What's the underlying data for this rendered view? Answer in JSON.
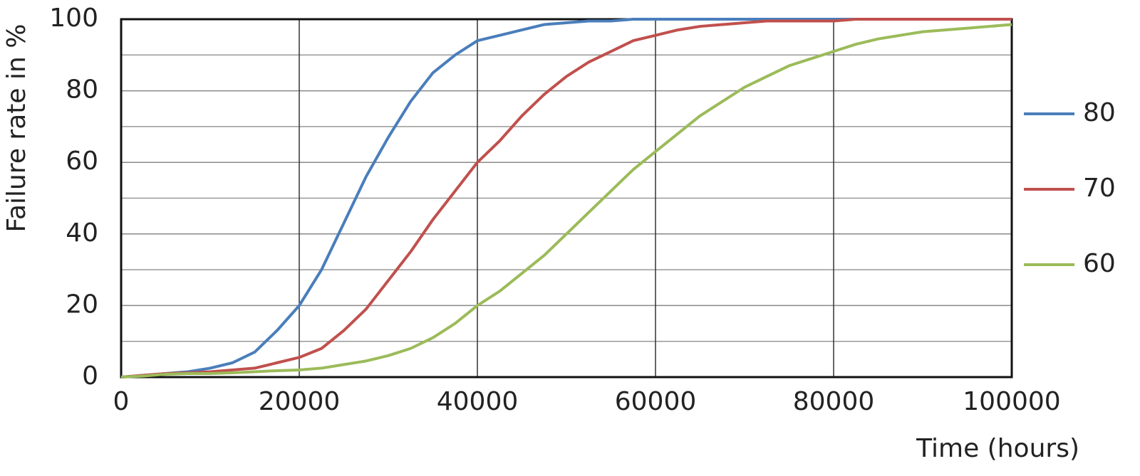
{
  "chart_data": {
    "type": "line",
    "x_label": "Time (hours)",
    "y_label": "Failure rate in %",
    "x": [
      0,
      2500,
      5000,
      7500,
      10000,
      12500,
      15000,
      17500,
      20000,
      22500,
      25000,
      27500,
      30000,
      32500,
      35000,
      37500,
      40000,
      42500,
      45000,
      47500,
      50000,
      52500,
      55000,
      57500,
      60000,
      62500,
      65000,
      67500,
      70000,
      72500,
      75000,
      77500,
      80000,
      82500,
      85000,
      87500,
      90000,
      92500,
      95000,
      97500,
      100000
    ],
    "series": [
      {
        "name": "80",
        "color": "#4a7ebb",
        "values": [
          0,
          0.5,
          1,
          1.5,
          2.5,
          4,
          7,
          13,
          20,
          30,
          43,
          56,
          67,
          77,
          85,
          90,
          94,
          95.5,
          97,
          98.5,
          99,
          99.5,
          99.5,
          100,
          100,
          100,
          100,
          100,
          100,
          100,
          100,
          100,
          100,
          100,
          100,
          100,
          100,
          100,
          100,
          100,
          100
        ]
      },
      {
        "name": "70",
        "color": "#c0504d",
        "values": [
          0,
          0.5,
          1,
          1.2,
          1.5,
          2,
          2.5,
          4,
          5.5,
          8,
          13,
          19,
          27,
          35,
          44,
          52,
          60,
          66,
          73,
          79,
          84,
          88,
          91,
          94,
          95.5,
          97,
          98,
          98.5,
          99,
          99.5,
          99.5,
          99.5,
          99.5,
          100,
          100,
          100,
          100,
          100,
          100,
          100,
          100
        ]
      },
      {
        "name": "60",
        "color": "#9bbb59",
        "values": [
          0,
          0.3,
          0.8,
          1,
          1,
          1.2,
          1.5,
          1.8,
          2,
          2.5,
          3.5,
          4.5,
          6,
          8,
          11,
          15,
          20,
          24,
          29,
          34,
          40,
          46,
          52,
          58,
          63,
          68,
          73,
          77,
          81,
          84,
          87,
          89,
          91,
          93,
          94.5,
          95.5,
          96.5,
          97,
          97.5,
          98,
          98.5
        ]
      }
    ],
    "xlim": [
      0,
      100000
    ],
    "xticks": [
      0,
      20000,
      40000,
      60000,
      80000,
      100000
    ],
    "ylim": [
      0,
      100
    ],
    "yticks": [
      0,
      20,
      40,
      60,
      80,
      100
    ],
    "y_minor_ticks": [
      10,
      30,
      50,
      70,
      90
    ],
    "grid": true,
    "legend": "right"
  }
}
